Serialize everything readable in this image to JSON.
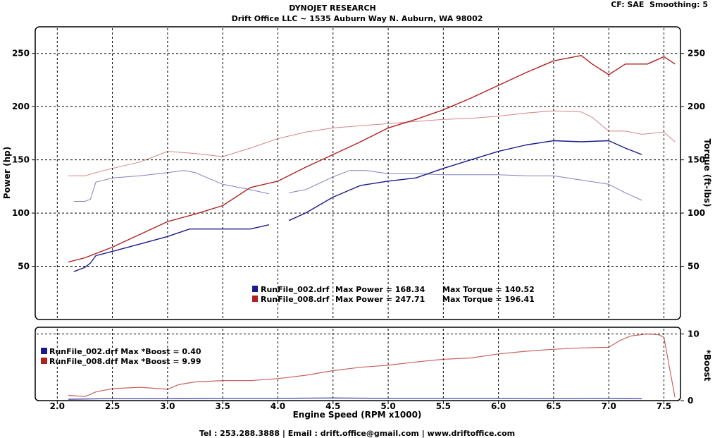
{
  "header": {
    "company": "DYNOJET RESEARCH",
    "address": "Drift Office LLC ~ 1535 Auburn Way N. Auburn, WA 98002",
    "settings": "CF: SAE  Smoothing: 5"
  },
  "footer": {
    "contact": "Tel : 253.288.3888 | Email : drift.office@gmail.com | www.driftoffice.com"
  },
  "colors": {
    "run002": "#1a1a8c",
    "run008": "#b02020"
  },
  "chart_data": [
    {
      "type": "line",
      "xlabel": "Engine Speed (RPM x1000)",
      "ylabel": "Power (hp)",
      "y2label": "Torque (ft-lbs)",
      "xlim": [
        1.8,
        7.65
      ],
      "ylim": [
        0,
        275
      ],
      "y2lim": [
        0,
        275
      ],
      "x_ticks": [
        "2.0",
        "2.5",
        "3.0",
        "3.5",
        "4.0",
        "4.5",
        "5.0",
        "5.5",
        "6.0",
        "6.5",
        "7.0",
        "7.5"
      ],
      "y_ticks": [
        "50",
        "100",
        "150",
        "200",
        "250"
      ],
      "y2_ticks": [
        "50",
        "100",
        "150",
        "200",
        "250"
      ],
      "grid": true,
      "series": [
        {
          "name": "RunFile_002.drf",
          "measure": "power",
          "color": "#1a1a8c",
          "x": [
            2.15,
            2.25,
            2.3,
            2.35,
            2.5,
            2.75,
            3.0,
            3.2,
            3.5,
            3.75,
            3.92,
            4.0,
            4.1,
            4.25,
            4.5,
            4.75,
            5.0,
            5.25,
            5.5,
            5.75,
            6.0,
            6.25,
            6.5,
            6.75,
            7.0,
            7.15,
            7.3
          ],
          "y": [
            45,
            49,
            53,
            60,
            64,
            71,
            78,
            85,
            85,
            85,
            89,
            null,
            93,
            100,
            115,
            126,
            130,
            133,
            142,
            150,
            158,
            164,
            168,
            167,
            168,
            161,
            155
          ]
        },
        {
          "name": "RunFile_002.drf",
          "measure": "torque",
          "color": "#1a1a8c",
          "x": [
            2.15,
            2.25,
            2.3,
            2.35,
            2.5,
            2.75,
            3.0,
            3.15,
            3.25,
            3.5,
            3.75,
            3.92,
            4.0,
            4.1,
            4.25,
            4.5,
            4.65,
            4.8,
            5.0,
            5.25,
            5.5,
            5.75,
            6.0,
            6.25,
            6.5,
            6.75,
            7.0,
            7.15,
            7.3
          ],
          "y": [
            111,
            111,
            113,
            129,
            133,
            135,
            138,
            140,
            138,
            127,
            122,
            118,
            null,
            119,
            122,
            134,
            140,
            140,
            137,
            137,
            136,
            136,
            136,
            135,
            135,
            131,
            127,
            119,
            112
          ]
        },
        {
          "name": "RunFile_008.drf",
          "measure": "power",
          "color": "#b02020",
          "x": [
            2.1,
            2.25,
            2.5,
            2.75,
            3.0,
            3.25,
            3.5,
            3.75,
            4.0,
            4.25,
            4.5,
            4.75,
            5.0,
            5.25,
            5.5,
            5.75,
            6.0,
            6.25,
            6.5,
            6.75,
            6.85,
            7.0,
            7.15,
            7.35,
            7.5,
            7.6
          ],
          "y": [
            54,
            58,
            68,
            80,
            92,
            99,
            107,
            124,
            130,
            143,
            155,
            167,
            180,
            188,
            197,
            208,
            220,
            232,
            243,
            248,
            240,
            230,
            240,
            240,
            247,
            240
          ]
        },
        {
          "name": "RunFile_008.drf",
          "measure": "torque",
          "color": "#b02020",
          "x": [
            2.1,
            2.25,
            2.35,
            2.5,
            2.75,
            3.0,
            3.25,
            3.5,
            3.75,
            4.0,
            4.25,
            4.5,
            4.75,
            5.0,
            5.25,
            5.5,
            5.75,
            6.0,
            6.25,
            6.5,
            6.75,
            6.85,
            7.0,
            7.15,
            7.3,
            7.5,
            7.6
          ],
          "y": [
            135,
            135,
            138,
            142,
            148,
            158,
            156,
            153,
            161,
            170,
            176,
            180,
            182,
            184,
            186,
            188,
            189,
            191,
            194,
            196,
            195,
            190,
            177,
            177,
            174,
            176,
            167
          ]
        }
      ],
      "legend": {
        "placement": "bottom-center",
        "entries": [
          {
            "color": "#1a1a8c",
            "file": "RunFile_002.drf",
            "power_label": "Max Power = 168.34",
            "torque_label": "Max Torque = 140.52"
          },
          {
            "color": "#b02020",
            "file": "RunFile_008.drf",
            "power_label": "Max Power = 247.71",
            "torque_label": "Max Torque = 196.41"
          }
        ]
      }
    },
    {
      "type": "line",
      "xlabel": "Engine Speed (RPM x1000)",
      "y2label": "*Boost",
      "xlim": [
        1.8,
        7.65
      ],
      "ylim": [
        0,
        11
      ],
      "x_ticks": [
        "2.0",
        "2.5",
        "3.0",
        "3.5",
        "4.0",
        "4.5",
        "5.0",
        "5.5",
        "6.0",
        "6.5",
        "7.0",
        "7.5"
      ],
      "y2_ticks": [
        "0",
        "10"
      ],
      "grid": true,
      "series": [
        {
          "name": "RunFile_002.drf",
          "measure": "boost",
          "color": "#1a1a8c",
          "x": [
            2.1,
            2.5,
            3.0,
            3.5,
            4.0,
            4.5,
            5.0,
            5.5,
            6.0,
            6.5,
            7.0,
            7.3
          ],
          "y": [
            0.2,
            0.3,
            0.3,
            0.35,
            0.35,
            0.4,
            0.35,
            0.35,
            0.35,
            0.3,
            0.35,
            0.3
          ]
        },
        {
          "name": "RunFile_008.drf",
          "measure": "boost",
          "color": "#b02020",
          "x": [
            2.1,
            2.25,
            2.35,
            2.5,
            2.75,
            3.0,
            3.1,
            3.25,
            3.5,
            3.75,
            4.0,
            4.25,
            4.5,
            4.75,
            5.0,
            5.25,
            5.5,
            5.75,
            6.0,
            6.25,
            6.5,
            6.75,
            7.0,
            7.1,
            7.2,
            7.35,
            7.45,
            7.5,
            7.55,
            7.6
          ],
          "y": [
            0.8,
            0.6,
            1.3,
            1.8,
            2.0,
            1.7,
            2.4,
            2.8,
            3.0,
            3.0,
            3.3,
            3.8,
            4.5,
            5.0,
            5.3,
            5.8,
            6.2,
            6.4,
            7.0,
            7.4,
            7.7,
            7.9,
            8.0,
            9.0,
            9.7,
            9.99,
            9.9,
            9.5,
            5.0,
            0.5
          ]
        }
      ],
      "legend": {
        "placement": "top-left",
        "entries": [
          {
            "color": "#1a1a8c",
            "label": "RunFile_002.drf Max *Boost = 0.40"
          },
          {
            "color": "#b02020",
            "label": "RunFile_008.drf Max *Boost = 9.99"
          }
        ]
      }
    }
  ]
}
